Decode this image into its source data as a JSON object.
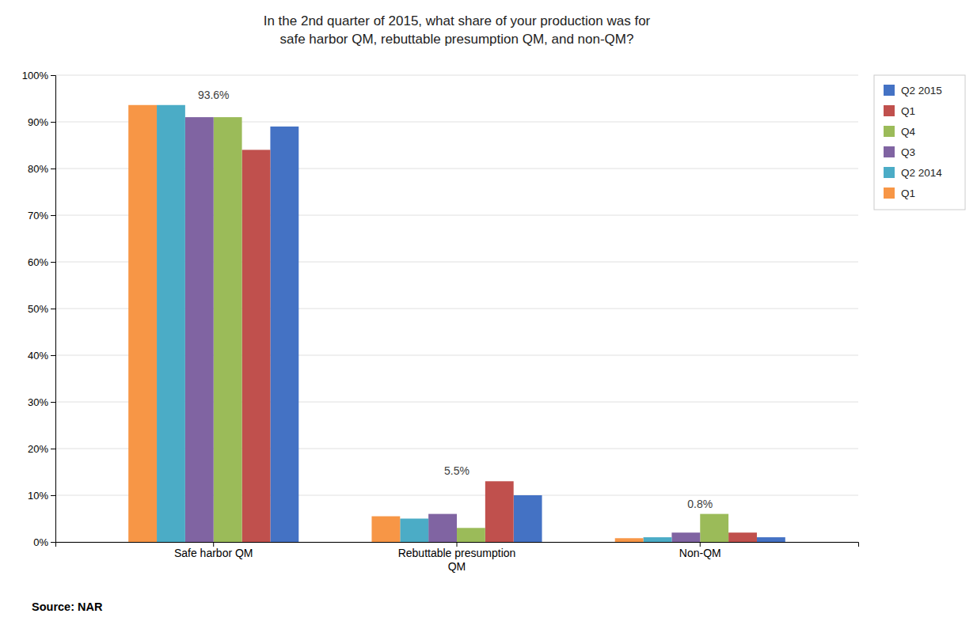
{
  "chart_data": {
    "type": "bar",
    "title": "In the 2nd quarter of 2015, what share of your production was for\nsafe harbor QM, rebuttable presumption QM, and non-QM?",
    "categories": [
      "Safe harbor QM",
      "Rebuttable presumption\nQM",
      "Non-QM"
    ],
    "series": [
      {
        "name": "Q2 2015",
        "color": "#4472C4",
        "values": [
          89.0,
          10.0,
          1.0
        ]
      },
      {
        "name": "Q1",
        "color": "#C0504D",
        "values": [
          84.0,
          13.0,
          2.0
        ]
      },
      {
        "name": "Q4",
        "color": "#9BBB59",
        "values": [
          91.0,
          3.0,
          6.0
        ]
      },
      {
        "name": "Q3",
        "color": "#8064A2",
        "values": [
          91.0,
          6.0,
          2.0
        ]
      },
      {
        "name": "Q2 2014",
        "color": "#4BACC6",
        "values": [
          93.6,
          5.0,
          1.0
        ]
      },
      {
        "name": "Q1",
        "color": "#F79646",
        "values": [
          93.6,
          5.5,
          0.8
        ]
      }
    ],
    "annotations": [
      "93.6%",
      "5.5%",
      "0.8%"
    ],
    "source": "Source: NAR",
    "ylim": [
      0,
      100
    ],
    "yticks": [
      {
        "value": 0,
        "label": "0%"
      },
      {
        "value": 10,
        "label": "10%"
      },
      {
        "value": 20,
        "label": "20%"
      },
      {
        "value": 30,
        "label": "30%"
      },
      {
        "value": 40,
        "label": "40%"
      },
      {
        "value": 50,
        "label": "50%"
      },
      {
        "value": 60,
        "label": "60%"
      },
      {
        "value": 70,
        "label": "70%"
      },
      {
        "value": 80,
        "label": "80%"
      },
      {
        "value": 90,
        "label": "90%"
      },
      {
        "value": 100,
        "label": "100%"
      }
    ],
    "grid": true,
    "legend": "upper right"
  }
}
